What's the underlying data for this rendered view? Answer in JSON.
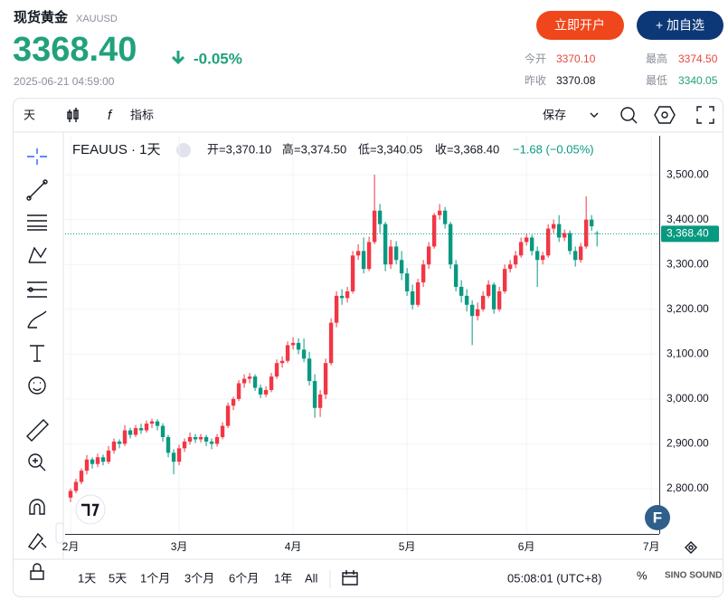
{
  "header": {
    "name": "现货黄金",
    "symbol": "XAUUSD",
    "price": "3368.40",
    "change": "-0.05%",
    "datetime": "2025-06-21 04:59:00",
    "buttons": [
      "立即开户",
      "+ 加自选"
    ],
    "stats": [
      {
        "label": "今开",
        "value": "3370.10"
      },
      {
        "label": "最高",
        "value": "3374.50"
      },
      {
        "label": "昨收",
        "value": "3370.08"
      },
      {
        "label": "最低",
        "value": "3340.05"
      }
    ]
  },
  "toolbar": {
    "interval": "天",
    "indicators": "指标",
    "save": "保存"
  },
  "footer": {
    "ranges": [
      "1天",
      "5天",
      "1个月",
      "3个月",
      "6个月",
      "1年",
      "All"
    ],
    "clock": "05:08:01 (UTC+8)",
    "percent": "%",
    "watermark": "SINO SOUND"
  },
  "chart_data": {
    "type": "candlestick",
    "series_name": "FEAUUS · 1天",
    "legend": [
      "开=3,370.10",
      "高=3,374.50",
      "低=3,340.05",
      "收=3,368.40",
      "−1.68 (−0.05%)"
    ],
    "up_color": "#f23645",
    "down_color": "#089981",
    "logo": "F",
    "last_price": {
      "value": 3368.4,
      "label": "3,368.40"
    },
    "ylim": [
      2699,
      3587
    ],
    "yticks": [
      {
        "value": 3500,
        "label": "3,500.00"
      },
      {
        "value": 3400,
        "label": "3,400.00"
      },
      {
        "value": 3300,
        "label": "3,300.00"
      },
      {
        "value": 3200,
        "label": "3,200.00"
      },
      {
        "value": 3100,
        "label": "3,100.00"
      },
      {
        "value": 3000,
        "label": "3,000.00"
      },
      {
        "value": 2900,
        "label": "2,900.00"
      },
      {
        "value": 2800,
        "label": "2,800.00"
      }
    ],
    "xlim": [
      -1,
      108.3
    ],
    "xticks": [
      {
        "value": 0,
        "label": "2月"
      },
      {
        "value": 20,
        "label": "3月"
      },
      {
        "value": 41,
        "label": "4月"
      },
      {
        "value": 62,
        "label": "5月"
      },
      {
        "value": 84,
        "label": "6月"
      },
      {
        "value": 107,
        "label": "7月"
      }
    ],
    "grid": true,
    "candles": [
      [
        2780,
        2800,
        2770,
        2795
      ],
      [
        2795,
        2822,
        2790,
        2815
      ],
      [
        2815,
        2845,
        2810,
        2840
      ],
      [
        2840,
        2875,
        2832,
        2865
      ],
      [
        2865,
        2870,
        2845,
        2855
      ],
      [
        2855,
        2878,
        2848,
        2870
      ],
      [
        2870,
        2876,
        2852,
        2860
      ],
      [
        2860,
        2895,
        2855,
        2885
      ],
      [
        2885,
        2912,
        2878,
        2905
      ],
      [
        2905,
        2910,
        2890,
        2900
      ],
      [
        2900,
        2942,
        2895,
        2930
      ],
      [
        2930,
        2936,
        2912,
        2920
      ],
      [
        2920,
        2942,
        2915,
        2935
      ],
      [
        2935,
        2945,
        2922,
        2930
      ],
      [
        2930,
        2952,
        2925,
        2945
      ],
      [
        2945,
        2956,
        2935,
        2950
      ],
      [
        2950,
        2955,
        2930,
        2940
      ],
      [
        2940,
        2946,
        2905,
        2915
      ],
      [
        2915,
        2920,
        2870,
        2880
      ],
      [
        2880,
        2888,
        2832,
        2860
      ],
      [
        2860,
        2898,
        2852,
        2890
      ],
      [
        2890,
        2912,
        2882,
        2905
      ],
      [
        2905,
        2925,
        2898,
        2915
      ],
      [
        2915,
        2922,
        2902,
        2910
      ],
      [
        2910,
        2922,
        2903,
        2915
      ],
      [
        2915,
        2920,
        2895,
        2905
      ],
      [
        2905,
        2912,
        2888,
        2900
      ],
      [
        2900,
        2922,
        2894,
        2915
      ],
      [
        2915,
        2948,
        2910,
        2940
      ],
      [
        2940,
        2992,
        2935,
        2985
      ],
      [
        2985,
        3005,
        2975,
        3000
      ],
      [
        3000,
        3042,
        2995,
        3035
      ],
      [
        3035,
        3055,
        3025,
        3045
      ],
      [
        3045,
        3058,
        3035,
        3050
      ],
      [
        3050,
        3055,
        3018,
        3025
      ],
      [
        3025,
        3032,
        3002,
        3010
      ],
      [
        3010,
        3028,
        3004,
        3020
      ],
      [
        3020,
        3058,
        3015,
        3050
      ],
      [
        3050,
        3088,
        3045,
        3080
      ],
      [
        3080,
        3095,
        3070,
        3085
      ],
      [
        3085,
        3128,
        3080,
        3120
      ],
      [
        3120,
        3138,
        3110,
        3125
      ],
      [
        3125,
        3135,
        3100,
        3110
      ],
      [
        3110,
        3135,
        3082,
        3090
      ],
      [
        3090,
        3105,
        3030,
        3040
      ],
      [
        3040,
        3055,
        2958,
        2980
      ],
      [
        2980,
        3020,
        2960,
        3010
      ],
      [
        3010,
        3090,
        3000,
        3080
      ],
      [
        3080,
        3180,
        3075,
        3170
      ],
      [
        3170,
        3240,
        3160,
        3230
      ],
      [
        3230,
        3245,
        3210,
        3225
      ],
      [
        3225,
        3250,
        3215,
        3240
      ],
      [
        3240,
        3330,
        3235,
        3320
      ],
      [
        3320,
        3345,
        3310,
        3330
      ],
      [
        3330,
        3360,
        3280,
        3290
      ],
      [
        3290,
        3362,
        3285,
        3350
      ],
      [
        3350,
        3500,
        3345,
        3420
      ],
      [
        3420,
        3435,
        3370,
        3390
      ],
      [
        3390,
        3395,
        3285,
        3300
      ],
      [
        3300,
        3355,
        3290,
        3340
      ],
      [
        3340,
        3352,
        3300,
        3310
      ],
      [
        3310,
        3330,
        3265,
        3280
      ],
      [
        3280,
        3292,
        3230,
        3240
      ],
      [
        3240,
        3255,
        3200,
        3210
      ],
      [
        3210,
        3268,
        3205,
        3260
      ],
      [
        3260,
        3310,
        3250,
        3300
      ],
      [
        3300,
        3350,
        3290,
        3340
      ],
      [
        3340,
        3415,
        3335,
        3410
      ],
      [
        3410,
        3435,
        3400,
        3420
      ],
      [
        3420,
        3428,
        3380,
        3390
      ],
      [
        3390,
        3395,
        3290,
        3300
      ],
      [
        3300,
        3310,
        3240,
        3250
      ],
      [
        3250,
        3265,
        3215,
        3230
      ],
      [
        3230,
        3245,
        3195,
        3210
      ],
      [
        3210,
        3220,
        3120,
        3185
      ],
      [
        3185,
        3215,
        3175,
        3200
      ],
      [
        3200,
        3240,
        3195,
        3230
      ],
      [
        3230,
        3265,
        3225,
        3255
      ],
      [
        3255,
        3260,
        3190,
        3200
      ],
      [
        3200,
        3250,
        3195,
        3240
      ],
      [
        3240,
        3300,
        3235,
        3290
      ],
      [
        3290,
        3310,
        3282,
        3300
      ],
      [
        3300,
        3330,
        3292,
        3320
      ],
      [
        3320,
        3360,
        3315,
        3350
      ],
      [
        3350,
        3368,
        3342,
        3360
      ],
      [
        3360,
        3366,
        3320,
        3330
      ],
      [
        3330,
        3340,
        3250,
        3310
      ],
      [
        3310,
        3328,
        3300,
        3320
      ],
      [
        3320,
        3390,
        3315,
        3380
      ],
      [
        3380,
        3400,
        3370,
        3390
      ],
      [
        3390,
        3410,
        3350,
        3360
      ],
      [
        3360,
        3378,
        3352,
        3370
      ],
      [
        3370,
        3376,
        3322,
        3330
      ],
      [
        3330,
        3340,
        3295,
        3310
      ],
      [
        3310,
        3348,
        3304,
        3340
      ],
      [
        3340,
        3452,
        3335,
        3400
      ],
      [
        3400,
        3410,
        3375,
        3385
      ],
      [
        3370.1,
        3374.5,
        3340.05,
        3368.4
      ]
    ]
  }
}
